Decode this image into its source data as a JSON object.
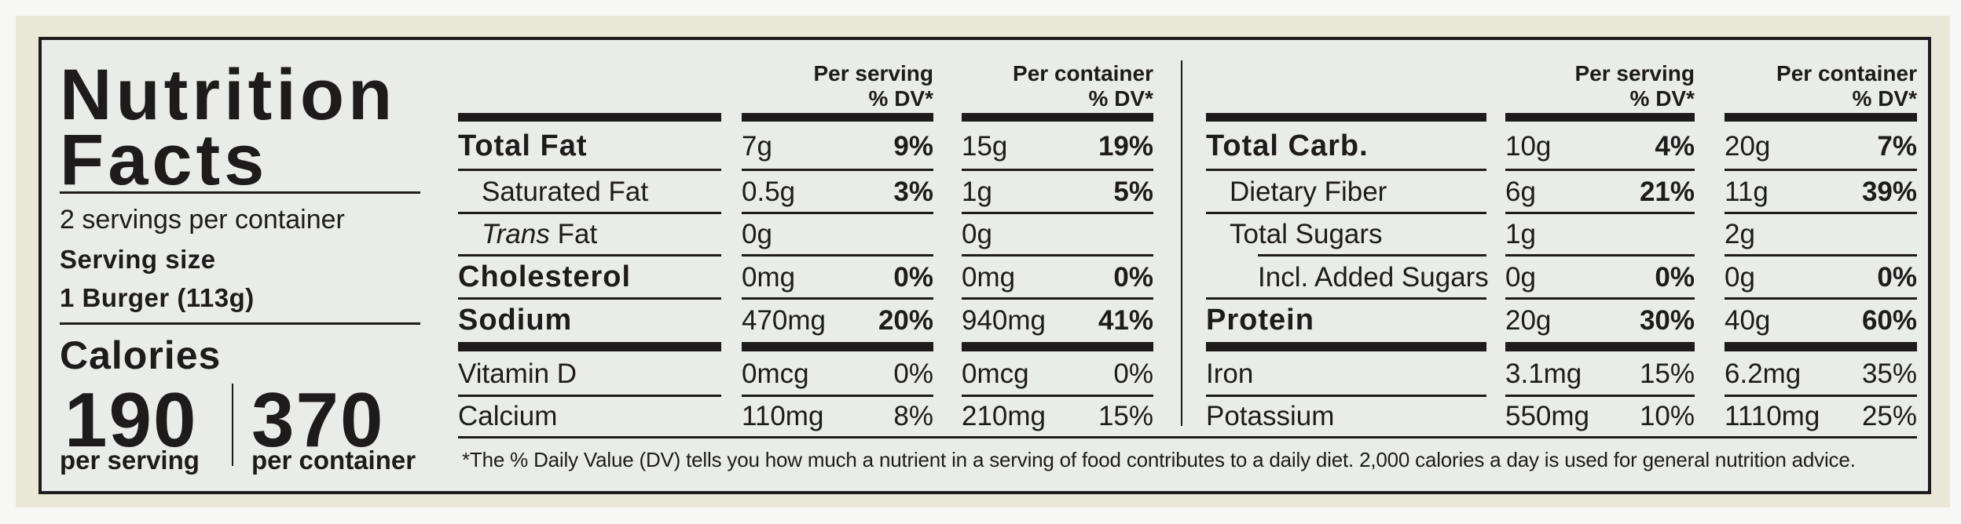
{
  "title": {
    "line1": "Nutrition",
    "line2": "Facts"
  },
  "servings_per_container": "2 servings per container",
  "serving_size_label": "Serving size",
  "serving_size_value": "1 Burger (113g)",
  "calories": {
    "label": "Calories",
    "per_serving": "190",
    "per_serving_label": "per serving",
    "per_container": "370",
    "per_container_label": "per container"
  },
  "column_headers": {
    "per_serving": "Per serving",
    "per_container": "Per container",
    "dv": "% DV*"
  },
  "left": {
    "rows": [
      {
        "label": "Total Fat",
        "style": "bold",
        "serving": {
          "amount": "7g",
          "dv": "9%"
        },
        "container": {
          "amount": "15g",
          "dv": "19%"
        }
      },
      {
        "label": "Saturated Fat",
        "style": "indent",
        "serving": {
          "amount": "0.5g",
          "dv": "3%"
        },
        "container": {
          "amount": "1g",
          "dv": "5%"
        }
      },
      {
        "label_italic": "Trans",
        "label": " Fat",
        "style": "indent",
        "serving": {
          "amount": "0g",
          "dv": ""
        },
        "container": {
          "amount": "0g",
          "dv": ""
        }
      },
      {
        "label": "Cholesterol",
        "style": "bold",
        "serving": {
          "amount": "0mg",
          "dv": "0%"
        },
        "container": {
          "amount": "0mg",
          "dv": "0%"
        }
      },
      {
        "label": "Sodium",
        "style": "bold",
        "serving": {
          "amount": "470mg",
          "dv": "20%"
        },
        "container": {
          "amount": "940mg",
          "dv": "41%"
        }
      },
      {
        "label": "Vitamin D",
        "style": "plain",
        "serving": {
          "amount": "0mcg",
          "dv": "0%"
        },
        "container": {
          "amount": "0mcg",
          "dv": "0%"
        }
      },
      {
        "label": "Calcium",
        "style": "plain",
        "serving": {
          "amount": "110mg",
          "dv": "8%"
        },
        "container": {
          "amount": "210mg",
          "dv": "15%"
        }
      }
    ]
  },
  "right": {
    "rows": [
      {
        "label": "Total Carb.",
        "style": "bold",
        "serving": {
          "amount": "10g",
          "dv": "4%"
        },
        "container": {
          "amount": "20g",
          "dv": "7%"
        }
      },
      {
        "label": "Dietary Fiber",
        "style": "indent",
        "serving": {
          "amount": "6g",
          "dv": "21%"
        },
        "container": {
          "amount": "11g",
          "dv": "39%"
        }
      },
      {
        "label": "Total Sugars",
        "style": "indent",
        "serving": {
          "amount": "1g",
          "dv": ""
        },
        "container": {
          "amount": "2g",
          "dv": ""
        }
      },
      {
        "label": "Incl. Added Sugars",
        "style": "indent2",
        "serving": {
          "amount": "0g",
          "dv": "0%"
        },
        "container": {
          "amount": "0g",
          "dv": "0%"
        }
      },
      {
        "label": "Protein",
        "style": "bold",
        "serving": {
          "amount": "20g",
          "dv": "30%"
        },
        "container": {
          "amount": "40g",
          "dv": "60%"
        }
      },
      {
        "label": "Iron",
        "style": "plain",
        "serving": {
          "amount": "3.1mg",
          "dv": "15%"
        },
        "container": {
          "amount": "6.2mg",
          "dv": "35%"
        }
      },
      {
        "label": "Potassium",
        "style": "plain",
        "serving": {
          "amount": "550mg",
          "dv": "10%"
        },
        "container": {
          "amount": "1110mg",
          "dv": "25%"
        }
      }
    ]
  },
  "footnote": "*The % Daily Value (DV) tells you how much a nutrient in a serving of food contributes to a daily diet. 2,000 calories a day is used for general nutrition advice.",
  "colors": {
    "text": "#1d1b1b",
    "panel": "#eaece9",
    "border_cream": "#e9e7d6"
  }
}
